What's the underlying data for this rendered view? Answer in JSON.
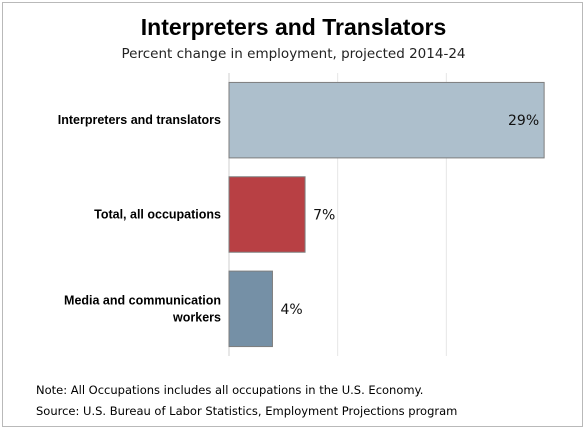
{
  "header": {
    "title": "Interpreters and Translators",
    "subtitle": "Percent change in employment, projected 2014-24"
  },
  "chart_data": {
    "type": "bar",
    "orientation": "horizontal",
    "title": "Interpreters and Translators",
    "subtitle": "Percent change in employment, projected 2014-24",
    "categories": [
      [
        "Interpreters and translators"
      ],
      [
        "Total, all occupations"
      ],
      [
        "Media and communication",
        "workers"
      ]
    ],
    "values": [
      29,
      7,
      4
    ],
    "data_labels": [
      "29%",
      "7%",
      "4%"
    ],
    "bar_colors": [
      "#adbfcc",
      "#b84044",
      "#7590a6"
    ],
    "xlim": [
      0,
      30
    ],
    "grid_values": [
      10,
      20
    ],
    "grid": true,
    "legend": false,
    "xlabel": "",
    "ylabel": ""
  },
  "footer": {
    "note": "Note: All Occupations includes all occupations in the U.S. Economy.",
    "source": "Source: U.S. Bureau of Labor Statistics, Employment Projections program"
  }
}
